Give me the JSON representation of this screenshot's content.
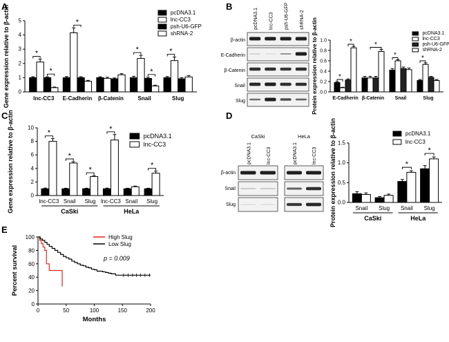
{
  "colors": {
    "black": "#000000",
    "white": "#ffffff",
    "dark": "#222222",
    "red": "#e8211e",
    "blot_bg": "#f2f2f2",
    "band": "#1f1f1f"
  },
  "chart_data": [
    {
      "panel": "A",
      "type": "bar",
      "ylabel": "Gene expression relative to β-actin",
      "ylim": [
        0,
        5
      ],
      "yticks": [
        "0",
        "1",
        "2",
        "3",
        "4",
        "5"
      ],
      "categories": [
        "lnc-CC3",
        "E-Cadherin",
        "β-Catenin",
        "Snail",
        "Slug"
      ],
      "series": [
        {
          "name": "pcDNA3.1",
          "fill": "#000000",
          "values": [
            1.0,
            1.0,
            1.0,
            1.0,
            1.0
          ],
          "errors": [
            0.07,
            0.08,
            0.06,
            0.1,
            0.08
          ]
        },
        {
          "name": "lnc-CC3",
          "fill": "#ffffff",
          "values": [
            2.1,
            4.15,
            0.95,
            2.35,
            2.2
          ],
          "errors": [
            0.2,
            0.35,
            0.08,
            0.22,
            0.25
          ]
        },
        {
          "name": "psh-U6-GFP",
          "fill": "#000000",
          "values": [
            1.0,
            1.0,
            0.92,
            0.95,
            0.92
          ],
          "errors": [
            0.06,
            0.07,
            0.06,
            0.08,
            0.08
          ]
        },
        {
          "name": "shRNA-2",
          "fill": "#ffffff",
          "values": [
            0.3,
            0.75,
            1.2,
            0.42,
            1.05
          ],
          "errors": [
            0.04,
            0.06,
            0.08,
            0.05,
            0.1
          ]
        }
      ],
      "sig_marks": [
        "*",
        "*",
        "*",
        "*",
        "*",
        "*"
      ]
    },
    {
      "panel": "B",
      "type": "bar",
      "ylabel": "Protein expression relative to β-actin",
      "ylim": [
        0,
        1.0
      ],
      "yticks": [
        "0.0",
        "0.2",
        "0.4",
        "0.6",
        "0.8",
        "1.0"
      ],
      "categories": [
        "E-Cadherin",
        "β-Catenin",
        "Snail",
        "Slug"
      ],
      "series": [
        {
          "name": "pcDNA3.1",
          "fill": "#000000",
          "values": [
            0.18,
            0.27,
            0.42,
            0.22
          ],
          "errors": [
            0.02,
            0.03,
            0.03,
            0.02
          ]
        },
        {
          "name": "lnc-CC3",
          "fill": "#ffffff",
          "values": [
            0.08,
            0.27,
            0.6,
            0.53
          ],
          "errors": [
            0.01,
            0.03,
            0.02,
            0.03
          ]
        },
        {
          "name": "psh-U6-GFP",
          "fill": "#222222",
          "values": [
            0.23,
            0.27,
            0.45,
            0.28
          ],
          "errors": [
            0.02,
            0.03,
            0.03,
            0.02
          ]
        },
        {
          "name": "shRNA-2",
          "fill": "#ffffff",
          "values": [
            0.85,
            0.78,
            0.43,
            0.22
          ],
          "errors": [
            0.03,
            0.04,
            0.03,
            0.02
          ]
        }
      ],
      "sig_marks": [
        "*",
        "*",
        "*",
        "*",
        "*",
        "*"
      ]
    },
    {
      "panel": "C",
      "type": "bar",
      "ylabel": "Gene expression relative to β-actin",
      "ylim": [
        0,
        10
      ],
      "yticks": [
        "0",
        "2",
        "4",
        "6",
        "8",
        "10"
      ],
      "categories": [
        "lnc-CC3",
        "Snail",
        "Slug",
        "lnc-CC3",
        "Snail",
        "Slug"
      ],
      "groups": [
        "CaSki",
        "HeLa"
      ],
      "series": [
        {
          "name": "pcDNA3.1",
          "fill": "#000000",
          "values": [
            1.0,
            1.0,
            1.0,
            1.0,
            1.0,
            1.0
          ],
          "errors": [
            0.1,
            0.08,
            0.08,
            0.1,
            0.08,
            0.08
          ]
        },
        {
          "name": "lnc-CC3",
          "fill": "#ffffff",
          "values": [
            8.0,
            4.8,
            2.8,
            8.2,
            1.3,
            3.3
          ],
          "errors": [
            0.4,
            0.2,
            0.15,
            0.8,
            0.1,
            0.3
          ]
        }
      ],
      "sig_marks": [
        "*",
        "*",
        "*",
        "*",
        "*"
      ]
    },
    {
      "panel": "D",
      "type": "bar",
      "ylabel": "Protein expression relative to β-actin",
      "ylim": [
        0,
        1.5
      ],
      "yticks": [
        "0.0",
        "0.5",
        "1.0",
        "1.5"
      ],
      "categories": [
        "Snail",
        "Slug",
        "Snail",
        "Slug"
      ],
      "groups": [
        "CaSki",
        "HeLa"
      ],
      "series": [
        {
          "name": "pcDNA3.1",
          "fill": "#000000",
          "values": [
            0.22,
            0.12,
            0.53,
            0.85
          ],
          "errors": [
            0.05,
            0.03,
            0.05,
            0.08
          ]
        },
        {
          "name": "lnc-CC3",
          "fill": "#ffffff",
          "values": [
            0.2,
            0.18,
            0.76,
            1.1
          ],
          "errors": [
            0.04,
            0.03,
            0.04,
            0.05
          ]
        }
      ],
      "sig_marks": [
        "*",
        "*"
      ]
    },
    {
      "panel": "E",
      "type": "line",
      "subtype": "kaplan-meier",
      "xlabel": "Months",
      "ylabel": "Percent survival",
      "xlim": [
        0,
        200
      ],
      "ylim": [
        0,
        100
      ],
      "xticks": [
        "0",
        "50",
        "100",
        "150",
        "200"
      ],
      "yticks": [
        "0",
        "20",
        "40",
        "60",
        "80",
        "100"
      ],
      "annotation": "p = 0.009",
      "series": [
        {
          "name": "High Slug",
          "color": "#e8211e",
          "x": [
            0,
            3,
            6,
            9,
            12,
            15,
            20,
            27,
            40,
            43
          ],
          "y": [
            100,
            95,
            90,
            85,
            80,
            60,
            50,
            50,
            50,
            26
          ]
        },
        {
          "name": "Low Slug",
          "color": "#000000",
          "x": [
            0,
            4,
            8,
            12,
            16,
            20,
            25,
            30,
            35,
            40,
            45,
            50,
            55,
            60,
            65,
            70,
            75,
            80,
            85,
            90,
            95,
            100,
            105,
            110,
            115,
            120,
            125,
            130,
            138,
            150,
            200
          ],
          "y": [
            100,
            97,
            95,
            92,
            89,
            86,
            83,
            80,
            77,
            74,
            71,
            69,
            67,
            64,
            62,
            60,
            58,
            57,
            55,
            54,
            52,
            51,
            49,
            49,
            48,
            47,
            46,
            45,
            43,
            43,
            43
          ]
        }
      ]
    }
  ],
  "panels": {
    "A": {
      "label": "A"
    },
    "B": {
      "label": "B"
    },
    "C": {
      "label": "C"
    },
    "D": {
      "label": "D"
    },
    "E": {
      "label": "E"
    }
  },
  "blot_b": {
    "lane_labels": [
      "pcDNA3.1",
      "lnc-CC3",
      "psh-U6-GFP",
      "shRNA-2"
    ],
    "rows": [
      "β-actin",
      "E-Cadherin",
      "β-Catenin",
      "Snail",
      "Slug"
    ]
  },
  "blot_d": {
    "cell_lines": [
      "CaSki",
      "HeLa"
    ],
    "lane_labels": [
      "pcDNA3.1",
      "lnc-CC3",
      "pcDNA3.1",
      "lnc-CC3"
    ],
    "rows": [
      "β-actin",
      "Snail",
      "Slug"
    ]
  }
}
